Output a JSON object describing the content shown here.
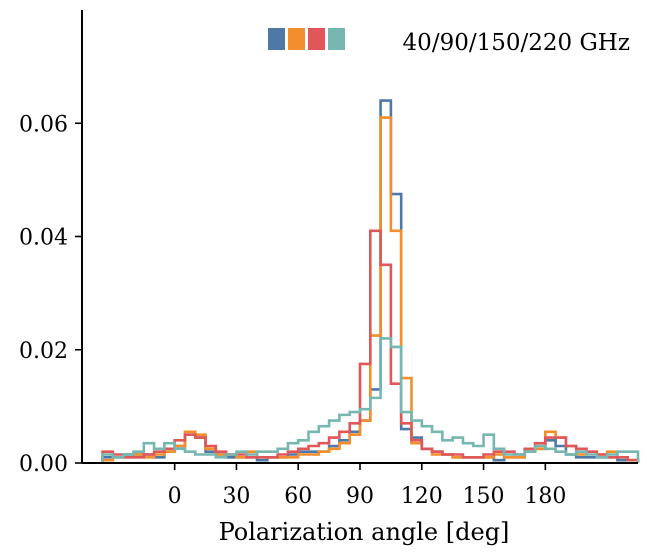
{
  "chart_data": {
    "type": "histogram",
    "xlabel": "Polarization angle [deg]",
    "ylabel": "",
    "xlim": [
      -45,
      225
    ],
    "ylim": [
      0,
      0.08
    ],
    "xticks": [
      0,
      30,
      60,
      90,
      120,
      150,
      180
    ],
    "xtick_labels": [
      "0",
      "30",
      "60",
      "90",
      "120",
      "150",
      "180"
    ],
    "yticks": [
      0.0,
      0.02,
      0.04,
      0.06
    ],
    "ytick_labels": [
      "0.00",
      "0.02",
      "0.04",
      "0.06"
    ],
    "bin_start": -35,
    "bin_width": 5,
    "grid": false,
    "legend": {
      "placement": "top-right",
      "label": "40/90/150/220 GHz"
    },
    "series": [
      {
        "color": "#4e79a7",
        "values": [
          0.001,
          0.001,
          0.0015,
          0.0015,
          0.0015,
          0.001,
          0.002,
          0.003,
          0.005,
          0.0045,
          0.002,
          0.0015,
          0.001,
          0.001,
          0.001,
          0.0005,
          0.001,
          0.001,
          0.0015,
          0.002,
          0.002,
          0.002,
          0.003,
          0.004,
          0.0055,
          0.0075,
          0.013,
          0.064,
          0.0475,
          0.006,
          0.0045,
          0.0025,
          0.002,
          0.0015,
          0.001,
          0.001,
          0.001,
          0.001,
          0.0005,
          0.001,
          0.001,
          0.002,
          0.0025,
          0.004,
          0.003,
          0.0015,
          0.001,
          0.001,
          0.001,
          0.001,
          0.0005,
          0.0005
        ]
      },
      {
        "color": "#f28e2b",
        "values": [
          0.0005,
          0.001,
          0.001,
          0.0015,
          0.001,
          0.0015,
          0.002,
          0.003,
          0.0055,
          0.005,
          0.0025,
          0.0015,
          0.0015,
          0.001,
          0.002,
          0.001,
          0.001,
          0.001,
          0.001,
          0.0015,
          0.0015,
          0.002,
          0.0025,
          0.0035,
          0.005,
          0.0075,
          0.0225,
          0.061,
          0.041,
          0.015,
          0.0035,
          0.0025,
          0.0015,
          0.0015,
          0.001,
          0.001,
          0.001,
          0.001,
          0.0015,
          0.001,
          0.001,
          0.002,
          0.0025,
          0.0055,
          0.0045,
          0.003,
          0.0015,
          0.002,
          0.0015,
          0.002,
          0.001,
          0.0005
        ]
      },
      {
        "color": "#e15759",
        "values": [
          0.002,
          0.0015,
          0.001,
          0.001,
          0.0015,
          0.002,
          0.0025,
          0.004,
          0.005,
          0.0045,
          0.003,
          0.002,
          0.0015,
          0.0015,
          0.001,
          0.001,
          0.001,
          0.0015,
          0.002,
          0.0025,
          0.003,
          0.0035,
          0.0045,
          0.0055,
          0.007,
          0.0175,
          0.041,
          0.035,
          0.014,
          0.007,
          0.004,
          0.0025,
          0.002,
          0.0015,
          0.0015,
          0.001,
          0.001,
          0.0015,
          0.002,
          0.002,
          0.0015,
          0.0025,
          0.0035,
          0.0045,
          0.0045,
          0.003,
          0.0025,
          0.002,
          0.0015,
          0.001,
          0.001,
          0.0005
        ]
      },
      {
        "color": "#76b7b2",
        "values": [
          0.0015,
          0.001,
          0.0015,
          0.002,
          0.0035,
          0.0025,
          0.0035,
          0.0025,
          0.002,
          0.0015,
          0.0015,
          0.001,
          0.0015,
          0.002,
          0.0015,
          0.002,
          0.002,
          0.0025,
          0.0035,
          0.004,
          0.0055,
          0.0065,
          0.0075,
          0.0085,
          0.009,
          0.0095,
          0.0115,
          0.022,
          0.0205,
          0.009,
          0.0075,
          0.0065,
          0.0055,
          0.004,
          0.0045,
          0.0035,
          0.003,
          0.005,
          0.0025,
          0.0015,
          0.0015,
          0.002,
          0.003,
          0.0025,
          0.002,
          0.0015,
          0.002,
          0.0015,
          0.001,
          0.0015,
          0.002,
          0.002
        ]
      }
    ]
  }
}
